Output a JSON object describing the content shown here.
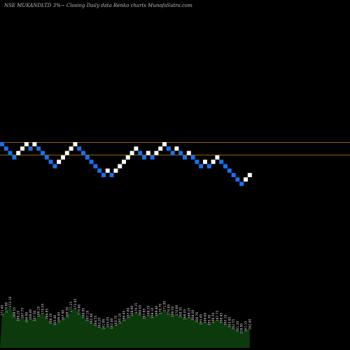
{
  "chart_data": {
    "type": "renko",
    "title": "NSE MUKANDLTD 3%~ Closing Daily data  Renko  charts MunafaSutra.com",
    "colors": {
      "up": "#ffffff",
      "down": "#1e6fe8",
      "reference_line": "#b8860b",
      "volume_fill": "#0c3a0c",
      "background": "#000000"
    },
    "reference_levels": [
      1,
      -1
    ],
    "bricks": [
      0,
      -1,
      -2,
      -3,
      -2,
      -1,
      0,
      -1,
      0,
      -1,
      -2,
      -3,
      -4,
      -5,
      -4,
      -3,
      -2,
      -1,
      0,
      -1,
      -2,
      -3,
      -4,
      -5,
      -6,
      -7,
      -6,
      -7,
      -6,
      -5,
      -4,
      -3,
      -2,
      -1,
      -2,
      -3,
      -2,
      -3,
      -2,
      -1,
      0,
      -1,
      -2,
      -1,
      -2,
      -3,
      -2,
      -3,
      -4,
      -5,
      -4,
      -5,
      -4,
      -3,
      -4,
      -5,
      -6,
      -7,
      -8,
      -9,
      -8,
      -7
    ],
    "volume_labels": [
      "171.40",
      "170.80",
      "172.10",
      "169.55",
      "168.20",
      "167.75",
      "166.90",
      "168.40",
      "167.30",
      "169.15",
      "170.05",
      "168.65",
      "166.20",
      "165.40",
      "166.85",
      "167.90",
      "169.30",
      "171.25",
      "172.45",
      "170.60",
      "168.95",
      "167.10",
      "165.80",
      "164.55",
      "163.20",
      "161.90",
      "163.05",
      "162.40",
      "163.75",
      "165.10",
      "166.45",
      "167.80",
      "168.90",
      "170.15",
      "169.05",
      "167.85",
      "169.20",
      "168.10",
      "169.40",
      "170.70",
      "171.95",
      "170.85",
      "169.50",
      "170.60",
      "169.35",
      "168.05",
      "169.25",
      "168.00",
      "166.70",
      "165.45",
      "166.60",
      "165.30",
      "166.50",
      "167.75",
      "166.45",
      "165.10",
      "163.85",
      "162.55",
      "161.20",
      "159.95",
      "161.15",
      "162.40"
    ],
    "volume_values": [
      48,
      52,
      60,
      45,
      40,
      44,
      38,
      42,
      40,
      46,
      50,
      43,
      36,
      34,
      38,
      41,
      45,
      53,
      57,
      49,
      44,
      40,
      36,
      33,
      30,
      28,
      31,
      29,
      33,
      36,
      40,
      44,
      47,
      51,
      48,
      43,
      47,
      44,
      47,
      50,
      54,
      49,
      46,
      48,
      45,
      42,
      44,
      41,
      38,
      35,
      37,
      34,
      37,
      40,
      37,
      34,
      31,
      28,
      25,
      22,
      25,
      28
    ]
  }
}
